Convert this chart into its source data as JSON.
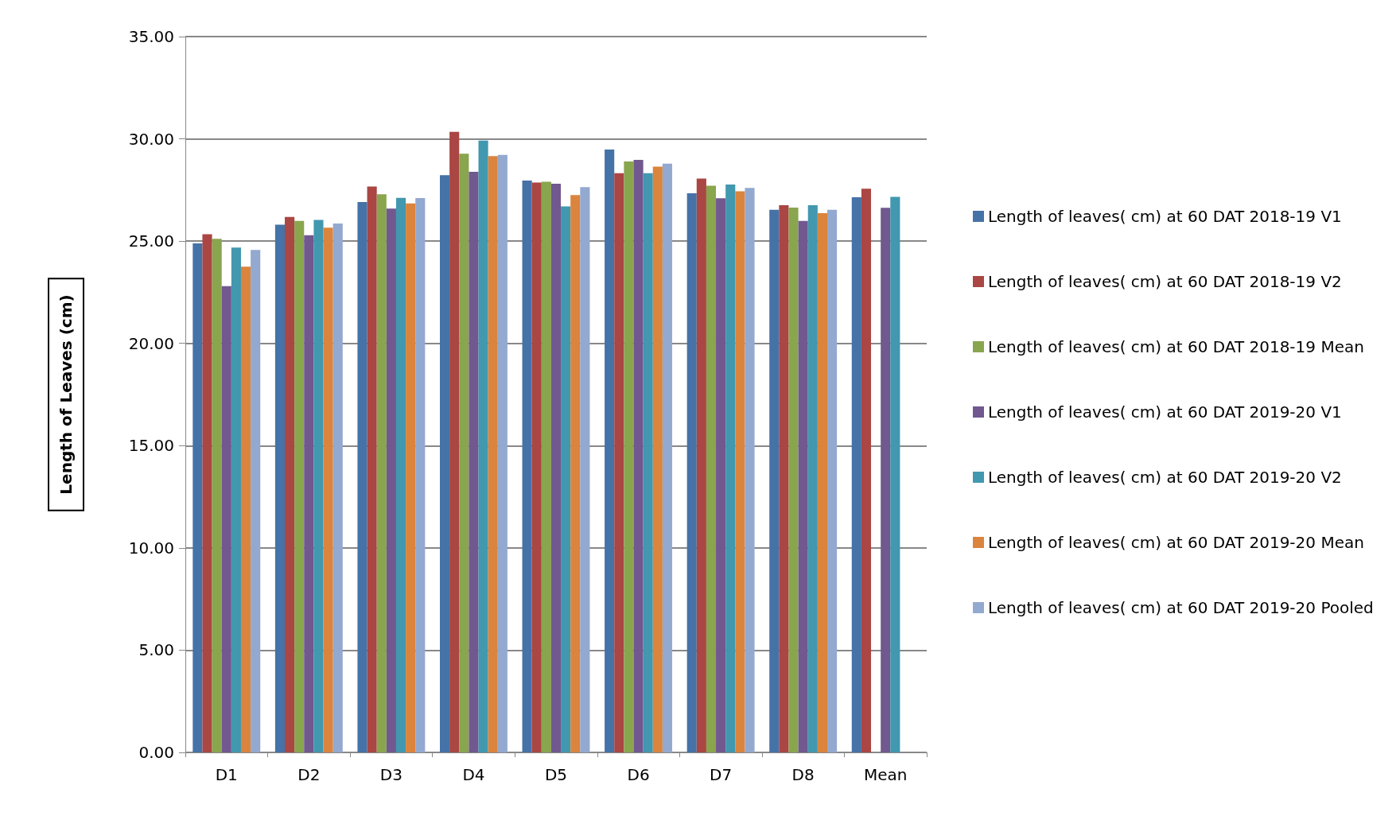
{
  "chart_data": {
    "type": "bar",
    "ylabel": "Length of Leaves (cm)",
    "categories": [
      "D1",
      "D2",
      "D3",
      "D4",
      "D5",
      "D6",
      "D7",
      "D8",
      "Mean"
    ],
    "series": [
      {
        "name": "Length of leaves( cm) at 60 DAT 2018-19 V1",
        "color": "#4572a7",
        "values": [
          24.89,
          25.8,
          26.91,
          28.22,
          27.96,
          29.48,
          27.34,
          26.53,
          27.14
        ]
      },
      {
        "name": "Length of leaves( cm) at 60 DAT 2018-19 V2",
        "color": "#aa4643",
        "values": [
          25.34,
          26.18,
          27.67,
          30.34,
          27.86,
          28.32,
          28.06,
          26.76,
          27.56
        ]
      },
      {
        "name": "Length of leaves( cm) at 60 DAT 2018-19 Mean",
        "color": "#89a54e",
        "values": [
          25.11,
          25.99,
          27.29,
          29.27,
          27.9,
          28.89,
          27.71,
          26.64,
          null
        ]
      },
      {
        "name": "Length of leaves( cm) at 60 DAT 2019-20 V1",
        "color": "#71588f",
        "values": [
          22.8,
          25.29,
          26.59,
          28.39,
          27.81,
          28.97,
          27.1,
          25.99,
          26.63
        ]
      },
      {
        "name": "Length of leaves( cm) at 60 DAT 2019-20 V2",
        "color": "#4198af",
        "values": [
          24.68,
          26.04,
          27.12,
          29.92,
          26.7,
          28.32,
          27.77,
          26.76,
          27.16
        ]
      },
      {
        "name": "Length of leaves( cm) at 60 DAT 2019-20 Mean",
        "color": "#db843d",
        "values": [
          23.75,
          25.66,
          26.84,
          29.16,
          27.25,
          28.64,
          27.44,
          26.37,
          null
        ]
      },
      {
        "name": "Length of leaves( cm) at 60 DAT 2019-20 Pooled",
        "color": "#93a9cf",
        "values": [
          24.57,
          25.86,
          27.11,
          29.22,
          27.64,
          28.79,
          27.6,
          26.53,
          null
        ]
      }
    ],
    "ylim": [
      0,
      35
    ],
    "yticks": [
      {
        "value": 0,
        "label": "0.00"
      },
      {
        "value": 5,
        "label": "5.00"
      },
      {
        "value": 10,
        "label": "10.00"
      },
      {
        "value": 15,
        "label": "15.00"
      },
      {
        "value": 20,
        "label": "20.00"
      },
      {
        "value": 25,
        "label": "25.00"
      },
      {
        "value": 30,
        "label": "30.00"
      },
      {
        "value": 35,
        "label": "35.00"
      }
    ],
    "grid": "y",
    "legend": "right"
  }
}
